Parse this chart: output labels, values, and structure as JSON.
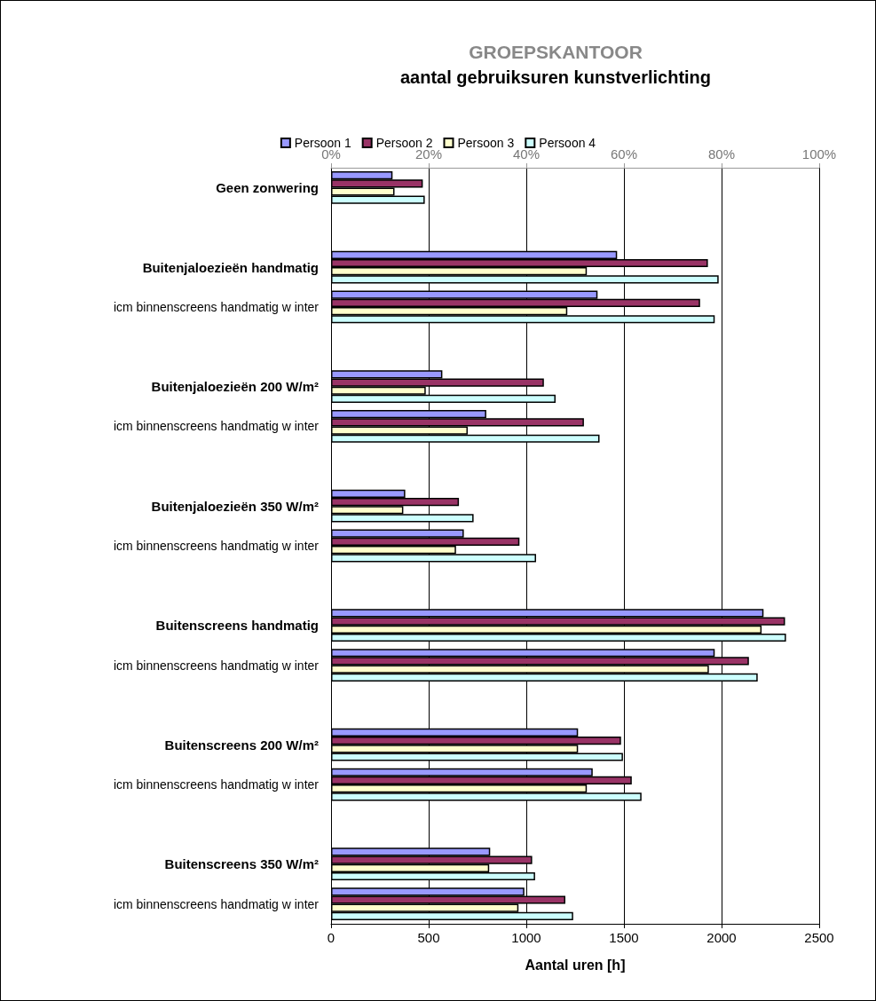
{
  "chart_data": {
    "type": "bar",
    "orientation": "horizontal",
    "title": "GROEPSKANTOOR",
    "subtitle": "aantal gebruiksuren kunstverlichting",
    "xlabel": "Aantal uren [h]",
    "categories": [
      "Geen zonwering",
      null,
      "Buitenjaloezieën handmatig",
      "icm binnenscreens handmatig w inter",
      null,
      "Buitenjaloezieën 200 W/m²",
      "icm binnenscreens handmatig w inter",
      null,
      "Buitenjaloezieën 350 W/m²",
      "icm binnenscreens handmatig w inter",
      null,
      "Buitenscreens handmatig",
      "icm binnenscreens handmatig w inter",
      null,
      "Buitenscreens 200 W/m²",
      "icm binnenscreens handmatig w inter",
      null,
      "Buitenscreens 350 W/m²",
      "icm binnenscreens handmatig w inter"
    ],
    "series": [
      {
        "name": "Persoon 1",
        "color": "#9999ff",
        "values": [
          315,
          null,
          1465,
          1365,
          null,
          570,
          795,
          null,
          380,
          680,
          null,
          2215,
          1965,
          null,
          1265,
          1340,
          null,
          815,
          990
        ]
      },
      {
        "name": "Persoon 2",
        "color": "#993366",
        "values": [
          470,
          null,
          1930,
          1890,
          null,
          1090,
          1295,
          null,
          655,
          965,
          null,
          2325,
          2140,
          null,
          1485,
          1540,
          null,
          1030,
          1200
        ]
      },
      {
        "name": "Persoon 3",
        "color": "#ffffcc",
        "values": [
          325,
          null,
          1310,
          1210,
          null,
          485,
          700,
          null,
          370,
          640,
          null,
          2205,
          1935,
          null,
          1265,
          1310,
          null,
          810,
          960
        ]
      },
      {
        "name": "Persoon 4",
        "color": "#ccffff",
        "values": [
          480,
          null,
          1985,
          1965,
          null,
          1150,
          1375,
          null,
          730,
          1050,
          null,
          2330,
          2185,
          null,
          1495,
          1590,
          null,
          1045,
          1240
        ]
      }
    ],
    "xlim": [
      0,
      2500
    ],
    "xticks": [
      0,
      500,
      1000,
      1500,
      2000,
      2500
    ],
    "x2lim": [
      0,
      100
    ],
    "x2ticks": [
      {
        "value": 0,
        "label": "0%"
      },
      {
        "value": 20,
        "label": "20%"
      },
      {
        "value": 40,
        "label": "40%"
      },
      {
        "value": 60,
        "label": "60%"
      },
      {
        "value": 80,
        "label": "80%"
      },
      {
        "value": 100,
        "label": "100%"
      }
    ],
    "grid": "x",
    "legend": "top"
  }
}
